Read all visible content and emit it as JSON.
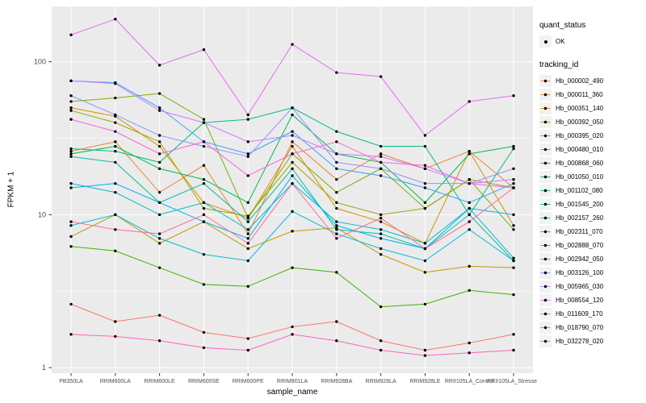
{
  "legend": {
    "quant_status_title": "quant_status",
    "quant_status_value": "OK",
    "tracking_id_title": "tracking_id"
  },
  "chart_data": {
    "type": "line",
    "title": "",
    "xlabel": "sample_name",
    "ylabel": "FPKM + 1",
    "y_scale": "log10",
    "y_ticks": [
      1,
      10,
      100
    ],
    "y_minor_ticks": [
      3.1623,
      31.623
    ],
    "ylim": [
      0.92,
      230
    ],
    "grid": true,
    "legend_position": "right",
    "panel_color": "#EBEBEB",
    "grid_color": "#FFFFFF",
    "point_color": "#000000",
    "axis_text_color": "#4D4D4D",
    "categories": [
      "PB350LA",
      "RRIM600LA",
      "RRIM600LE",
      "RRIM600SE",
      "RRIM600PE",
      "RRIM901LA",
      "RRIM928BA",
      "RRIM928LA",
      "RRIM928LE",
      "RRII105LA_Control",
      "RRII105LA_Stressed"
    ],
    "series": [
      {
        "name": "Hb_000002_490",
        "color": "#F8766D",
        "values": [
          2.6,
          2.0,
          2.2,
          1.7,
          1.55,
          1.85,
          2.0,
          1.5,
          1.3,
          1.45,
          1.65
        ]
      },
      {
        "name": "Hb_000011_360",
        "color": "#EA8331",
        "values": [
          26,
          30,
          14,
          21,
          7.5,
          30,
          17,
          25,
          20,
          26,
          15
        ]
      },
      {
        "name": "Hb_000351_140",
        "color": "#D89000",
        "values": [
          50,
          44,
          28,
          12,
          9.5,
          28,
          11,
          9,
          6.5,
          26,
          8.5
        ]
      },
      {
        "name": "Hb_000392_050",
        "color": "#C09B00",
        "values": [
          7.2,
          10,
          6.5,
          9,
          6,
          7.8,
          8.2,
          5.5,
          4.2,
          4.6,
          4.5
        ]
      },
      {
        "name": "Hb_000395_020",
        "color": "#A3A500",
        "values": [
          48,
          40,
          30,
          11,
          9.8,
          22,
          12,
          10,
          11,
          17,
          15
        ]
      },
      {
        "name": "Hb_000480_010",
        "color": "#7CAE00",
        "values": [
          55,
          58,
          62,
          42,
          9.5,
          25,
          14,
          20,
          11,
          17,
          8
        ]
      },
      {
        "name": "Hb_000868_060",
        "color": "#39B600",
        "values": [
          6.2,
          5.8,
          4.5,
          3.5,
          3.4,
          4.5,
          4.2,
          2.5,
          2.6,
          3.2,
          3.0
        ]
      },
      {
        "name": "Hb_001050_010",
        "color": "#00BB4E",
        "values": [
          25,
          28,
          20,
          17,
          12,
          45,
          25,
          22,
          12,
          25,
          28
        ]
      },
      {
        "name": "Hb_001102_080",
        "color": "#00BF7D",
        "values": [
          27,
          26,
          22,
          40,
          42,
          50,
          35,
          28,
          28,
          10,
          27
        ]
      },
      {
        "name": "Hb_001545_200",
        "color": "#00C1A3",
        "values": [
          24,
          22,
          12,
          16,
          9,
          20,
          8,
          7.5,
          6,
          10,
          5
        ]
      },
      {
        "name": "Hb_002157_260",
        "color": "#00BFC4",
        "values": [
          16,
          14,
          10,
          12,
          8,
          16,
          9,
          8,
          6.5,
          11,
          5.2
        ]
      },
      {
        "name": "Hb_002311_070",
        "color": "#00BAE0",
        "values": [
          8.5,
          10,
          7,
          5.5,
          5,
          10.5,
          7.5,
          6,
          5,
          8,
          5
        ]
      },
      {
        "name": "Hb_002888_070",
        "color": "#00B0F6",
        "values": [
          15,
          16,
          12,
          9,
          7,
          18,
          8.5,
          7,
          6,
          11,
          10
        ]
      },
      {
        "name": "Hb_002942_050",
        "color": "#35A2FF",
        "values": [
          75,
          73,
          50,
          30,
          25,
          35,
          20,
          18,
          15,
          12,
          16
        ]
      },
      {
        "name": "Hb_003126_100",
        "color": "#9590FF",
        "values": [
          60,
          45,
          33,
          28,
          24,
          50,
          22,
          20,
          16,
          16,
          20
        ]
      },
      {
        "name": "Hb_005965_030",
        "color": "#C77CFF",
        "values": [
          75,
          72,
          48,
          40,
          30,
          33,
          25,
          24,
          20,
          16,
          17
        ]
      },
      {
        "name": "Hb_008554_120",
        "color": "#E76BF3",
        "values": [
          150,
          190,
          95,
          120,
          45,
          130,
          85,
          80,
          33,
          55,
          60
        ]
      },
      {
        "name": "Hb_011609_170",
        "color": "#FA62DB",
        "values": [
          42,
          35,
          25,
          30,
          18,
          25,
          30,
          22,
          21,
          16,
          15
        ]
      },
      {
        "name": "Hb_018790_070",
        "color": "#FF62BC",
        "values": [
          1.65,
          1.6,
          1.5,
          1.35,
          1.3,
          1.65,
          1.5,
          1.3,
          1.2,
          1.25,
          1.3
        ]
      },
      {
        "name": "Hb_032278_020",
        "color": "#FF6A98",
        "values": [
          9,
          8,
          7.5,
          10,
          6.5,
          16,
          7,
          9.5,
          6,
          9,
          15
        ]
      }
    ]
  }
}
